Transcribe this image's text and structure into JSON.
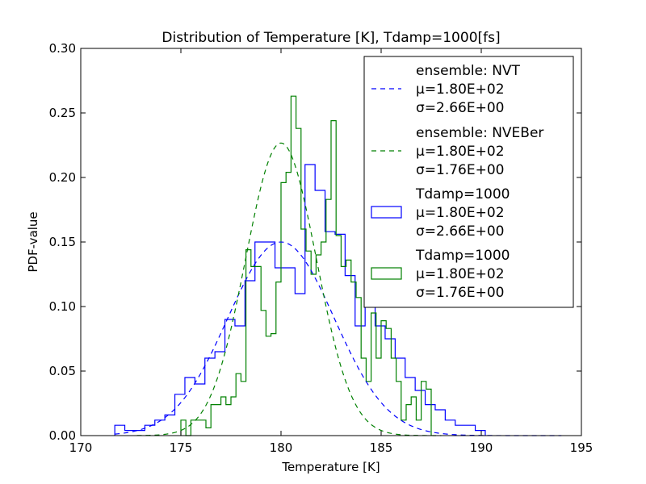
{
  "chart_data": {
    "type": "histogram_with_pdf",
    "title": "Distribution of Temperature [K], Tdamp=1000[fs]",
    "xlabel": "Temperature [K]",
    "ylabel": "PDF-value",
    "xlim": [
      170,
      195
    ],
    "ylim": [
      0,
      0.3
    ],
    "x_ticks": [
      170,
      175,
      180,
      185,
      190,
      195
    ],
    "y_ticks": [
      0.0,
      0.05,
      0.1,
      0.15,
      0.2,
      0.25,
      0.3
    ],
    "x_tick_labels": [
      "170",
      "175",
      "180",
      "185",
      "190",
      "195"
    ],
    "y_tick_labels": [
      "0.00",
      "0.05",
      "0.10",
      "0.15",
      "0.20",
      "0.25",
      "0.30"
    ],
    "grid": false,
    "legend_position": "upper-right",
    "curves": [
      {
        "name": "ensemble: NVT",
        "style": "dashed",
        "color": "#0000ff",
        "mu": 180.0,
        "sigma": 2.66,
        "label_mu": "μ=1.80E+02",
        "label_sigma": "σ=2.66E+00",
        "x_range": [
          171.7,
          194.0
        ]
      },
      {
        "name": "ensemble: NVEBer",
        "style": "dashed",
        "color": "#008000",
        "mu": 180.0,
        "sigma": 1.76,
        "label_mu": "μ=1.80E+02",
        "label_sigma": "σ=1.76E+00",
        "x_range": [
          172.8,
          188.0
        ]
      }
    ],
    "series": [
      {
        "name": "Tdamp=1000",
        "style": "step",
        "color": "#0000ff",
        "label_mu": "μ=1.80E+02",
        "label_sigma": "σ=2.66E+00",
        "bin_start": 171.7,
        "bin_width": 0.5,
        "values": [
          0.008,
          0.004,
          0.004,
          0.008,
          0.012,
          0.016,
          0.032,
          0.045,
          0.04,
          0.06,
          0.065,
          0.09,
          0.085,
          0.12,
          0.15,
          0.15,
          0.13,
          0.13,
          0.11,
          0.21,
          0.19,
          0.158,
          0.156,
          0.124,
          0.085,
          0.105,
          0.085,
          0.075,
          0.06,
          0.045,
          0.035,
          0.024,
          0.02,
          0.012,
          0.008,
          0.008,
          0.004
        ]
      },
      {
        "name": "Tdamp=1000",
        "style": "step",
        "color": "#008000",
        "label_mu": "μ=1.80E+02",
        "label_sigma": "σ=1.76E+00",
        "bin_start": 175.0,
        "bin_width": 0.25,
        "values": [
          0.012,
          0.0,
          0.012,
          0.012,
          0.012,
          0.006,
          0.024,
          0.024,
          0.03,
          0.024,
          0.03,
          0.048,
          0.042,
          0.144,
          0.131,
          0.131,
          0.097,
          0.077,
          0.079,
          0.119,
          0.196,
          0.204,
          0.263,
          0.238,
          0.16,
          0.143,
          0.125,
          0.14,
          0.15,
          0.183,
          0.244,
          0.155,
          0.131,
          0.136,
          0.119,
          0.107,
          0.06,
          0.042,
          0.095,
          0.06,
          0.089,
          0.083,
          0.06,
          0.042,
          0.012,
          0.024,
          0.03,
          0.012,
          0.042,
          0.036
        ]
      }
    ]
  }
}
